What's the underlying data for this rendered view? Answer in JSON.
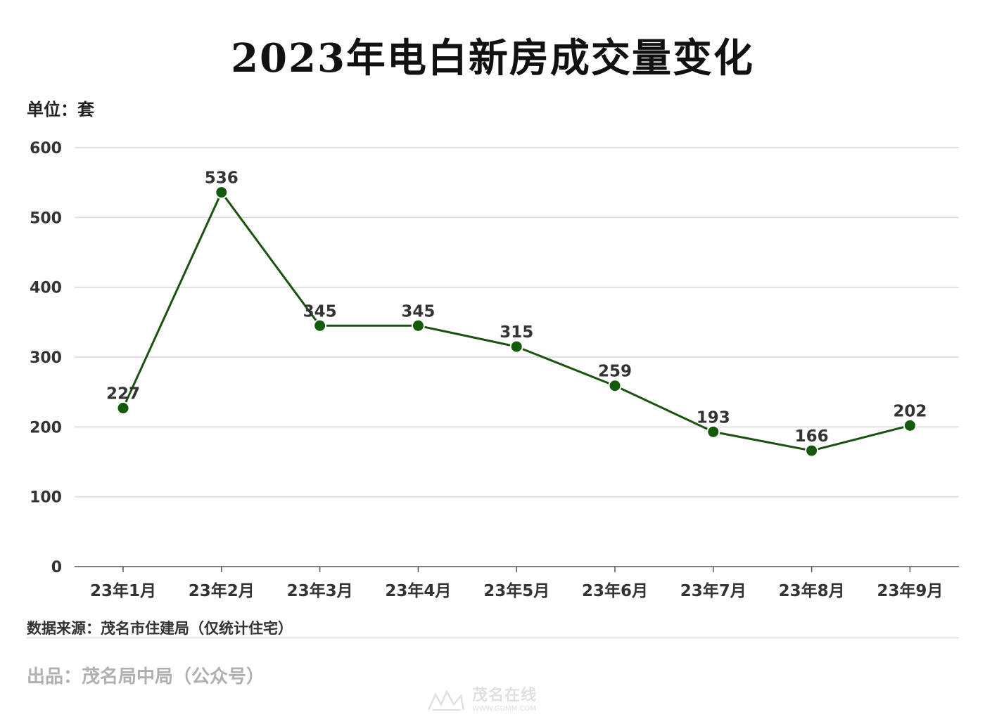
{
  "chart_data": {
    "type": "line",
    "title": "2023年电白新房成交量变化",
    "unit_label": "单位：套",
    "categories": [
      "23年1月",
      "23年2月",
      "23年3月",
      "23年4月",
      "23年5月",
      "23年6月",
      "23年7月",
      "23年8月",
      "23年9月"
    ],
    "values": [
      227,
      536,
      345,
      345,
      315,
      259,
      193,
      166,
      202
    ],
    "yticks": [
      "0",
      "100",
      "200",
      "300",
      "400",
      "500",
      "600"
    ],
    "ylim": [
      0,
      600
    ],
    "grid": true,
    "line_color": "#1a5210",
    "marker_color": "#145a0c"
  },
  "footer": {
    "source": "数据来源：茂名市住建局（仅统计住宅）",
    "producer": "出品：茂名局中局（公众号）"
  },
  "watermark": {
    "brand": "茂名在线",
    "url": "WWW.GDMM.COM"
  }
}
